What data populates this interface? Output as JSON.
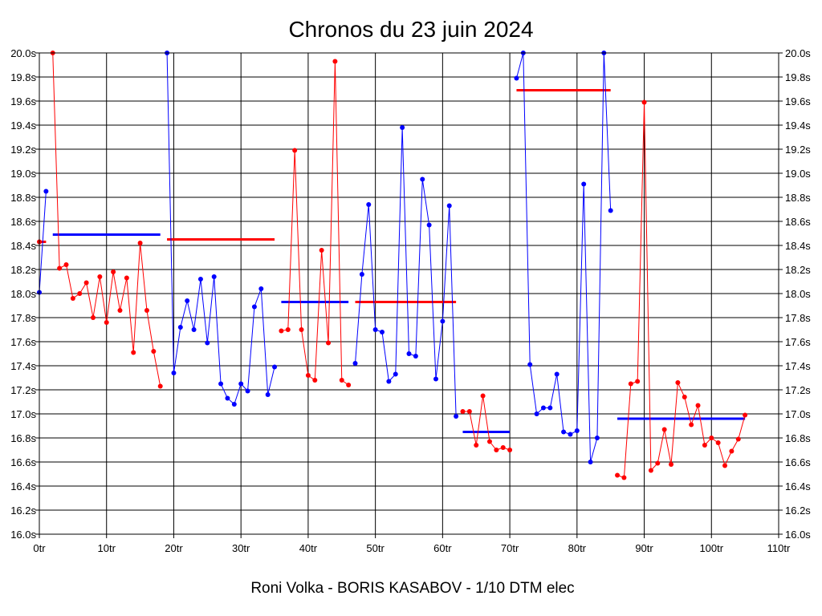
{
  "chart_data": {
    "type": "line",
    "title": "Chronos du 23 juin 2024",
    "xlabel": "Roni Volka - BORIS KASABOV - 1/10 DTM elec",
    "ylabel": "",
    "xlim": [
      0,
      110
    ],
    "ylim": [
      16.0,
      20.0
    ],
    "x_ticks": [
      "0tr",
      "10tr",
      "20tr",
      "30tr",
      "40tr",
      "50tr",
      "60tr",
      "70tr",
      "80tr",
      "90tr",
      "100tr",
      "110tr"
    ],
    "y_ticks": [
      "16.0s",
      "16.2s",
      "16.4s",
      "16.6s",
      "16.8s",
      "17.0s",
      "17.2s",
      "17.4s",
      "17.6s",
      "17.8s",
      "18.0s",
      "18.2s",
      "18.4s",
      "18.6s",
      "18.8s",
      "19.0s",
      "19.2s",
      "19.4s",
      "19.6s",
      "19.8s",
      "20.0s"
    ],
    "grid": true,
    "colors": {
      "red": "#ff0000",
      "blue": "#0000ff"
    },
    "series": [
      {
        "color": "red",
        "x": [
          0
        ],
        "y": [
          18.43
        ]
      },
      {
        "color": "blue",
        "x": [
          0,
          1
        ],
        "y": [
          18.01,
          18.85
        ]
      },
      {
        "color": "red",
        "x": [
          2,
          3,
          4,
          5,
          6,
          7,
          8,
          9,
          10,
          11,
          12,
          13,
          14,
          15,
          16,
          17,
          18
        ],
        "y": [
          20.0,
          18.21,
          18.24,
          17.96,
          18.0,
          18.09,
          17.8,
          18.14,
          17.76,
          18.18,
          17.86,
          18.13,
          17.51,
          18.42,
          17.86,
          17.52,
          17.23
        ]
      },
      {
        "color": "blue",
        "x": [
          19,
          20,
          21,
          22,
          23,
          24,
          25,
          26,
          27,
          28,
          29,
          30,
          31,
          32,
          33,
          34,
          35
        ],
        "y": [
          20.0,
          17.34,
          17.72,
          17.94,
          17.7,
          18.12,
          17.59,
          18.14,
          17.25,
          17.13,
          17.08,
          17.25,
          17.19,
          17.89,
          18.04,
          17.16,
          17.39
        ]
      },
      {
        "color": "red",
        "x": [
          36,
          37,
          38,
          39,
          40,
          41,
          42,
          43,
          44,
          45,
          46
        ],
        "y": [
          17.69,
          17.7,
          19.19,
          17.7,
          17.32,
          17.28,
          18.36,
          17.59,
          19.93,
          17.28,
          17.24
        ]
      },
      {
        "color": "blue",
        "x": [
          47,
          48,
          49,
          50,
          51,
          52,
          53,
          54,
          55,
          56,
          57,
          58,
          59,
          60,
          61,
          62
        ],
        "y": [
          17.42,
          18.16,
          18.74,
          17.7,
          17.68,
          17.27,
          17.33,
          19.38,
          17.5,
          17.48,
          18.95,
          18.57,
          17.29,
          17.77,
          18.73,
          16.98
        ]
      },
      {
        "color": "red",
        "x": [
          63,
          64,
          65,
          66,
          67,
          68,
          69,
          70
        ],
        "y": [
          17.02,
          17.02,
          16.74,
          17.15,
          16.77,
          16.7,
          16.72,
          16.7
        ]
      },
      {
        "color": "blue",
        "x": [
          71,
          72,
          73,
          74,
          75,
          76,
          77,
          78,
          79,
          80,
          81,
          82,
          83,
          84,
          85
        ],
        "y": [
          19.79,
          20.0,
          17.41,
          17.0,
          17.05,
          17.05,
          17.33,
          16.85,
          16.83,
          16.86,
          18.91,
          16.6,
          16.8,
          20.0,
          18.69
        ]
      },
      {
        "color": "red",
        "x": [
          86,
          87,
          88,
          89,
          90,
          91,
          92,
          93,
          94,
          95,
          96,
          97,
          98,
          99,
          100,
          101,
          102,
          103,
          104,
          105
        ],
        "y": [
          16.49,
          16.47,
          17.25,
          17.27,
          19.59,
          16.53,
          16.59,
          16.87,
          16.58,
          17.26,
          17.14,
          16.91,
          17.07,
          16.74,
          16.8,
          16.76,
          16.57,
          16.69,
          16.79,
          16.99
        ]
      }
    ],
    "average_lines": [
      {
        "color": "red",
        "x": [
          0,
          1
        ],
        "y": 18.43
      },
      {
        "color": "blue",
        "x": [
          2,
          18
        ],
        "y": 18.49
      },
      {
        "color": "red",
        "x": [
          19,
          35
        ],
        "y": 18.45
      },
      {
        "color": "blue",
        "x": [
          36,
          46
        ],
        "y": 17.93
      },
      {
        "color": "red",
        "x": [
          47,
          62
        ],
        "y": 17.93
      },
      {
        "color": "blue",
        "x": [
          63,
          70
        ],
        "y": 16.85
      },
      {
        "color": "red",
        "x": [
          71,
          85
        ],
        "y": 19.69
      },
      {
        "color": "blue",
        "x": [
          86,
          105
        ],
        "y": 16.96
      }
    ]
  }
}
